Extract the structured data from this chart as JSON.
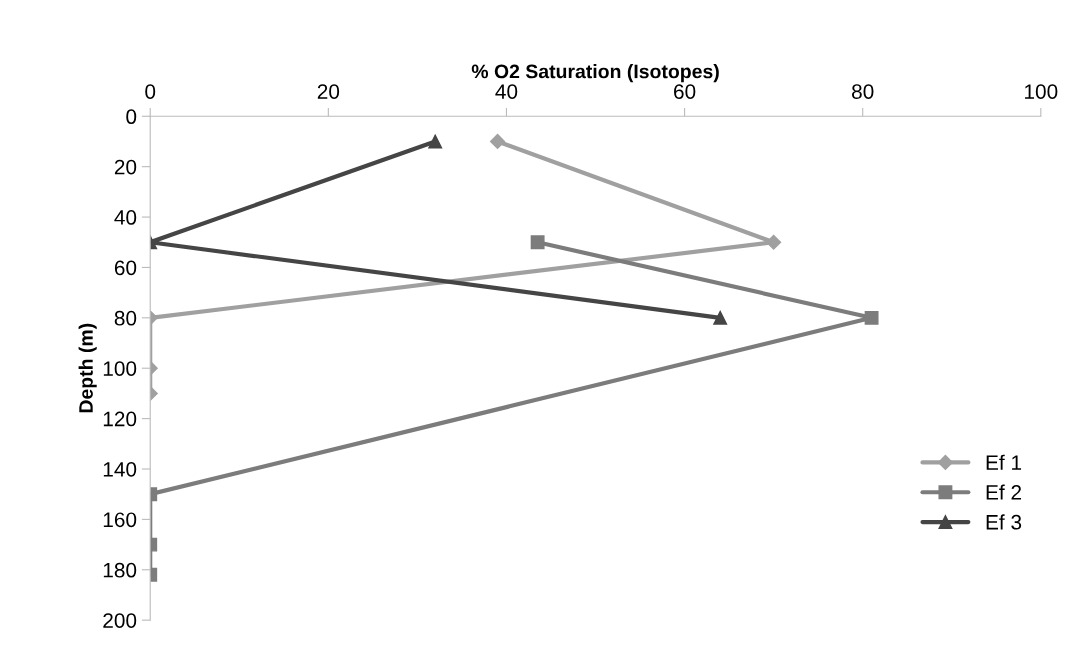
{
  "chart_data": {
    "type": "line",
    "xlabel": "% O2 Saturation (Isotopes)",
    "ylabel": "Depth (m)",
    "xlim": [
      0,
      100
    ],
    "xticks": [
      0,
      20,
      40,
      60,
      80,
      100
    ],
    "ylim": [
      200,
      0
    ],
    "yticks": [
      0,
      20,
      40,
      60,
      80,
      100,
      120,
      140,
      160,
      180,
      200
    ],
    "grid": false,
    "legend": "right",
    "series": [
      {
        "name": "Ef 1",
        "color": "#a0a0a0",
        "marker": "diamond",
        "x": [
          39,
          70,
          0,
          0,
          0
        ],
        "values": [
          10,
          50,
          80,
          100,
          110
        ]
      },
      {
        "name": "Ef 2",
        "color": "#7c7c7c",
        "marker": "square",
        "x": [
          43.5,
          81,
          0,
          0,
          0
        ],
        "values": [
          50,
          80,
          150,
          170,
          182
        ]
      },
      {
        "name": "Ef 3",
        "color": "#454545",
        "marker": "triangle",
        "x": [
          32,
          0,
          64
        ],
        "values": [
          10,
          50,
          80
        ]
      }
    ]
  }
}
